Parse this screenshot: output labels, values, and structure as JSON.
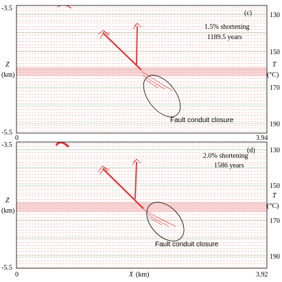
{
  "chart_data": [
    {
      "type": "vector-field",
      "panel_label": "(c)",
      "annotation_line1": "1.5% shortening",
      "annotation_line2": "1189.5 years",
      "callout": "Fault conduit closure",
      "xlim": [
        0,
        3.94
      ],
      "x_tick_labels": [
        "0",
        "3.94"
      ],
      "zlim": [
        -5.5,
        -3.5
      ],
      "z_tick_labels": [
        "-3.5",
        "-5.5"
      ],
      "t_ticks": [
        130,
        150,
        170,
        190
      ],
      "ylabel_z": "Z",
      "ylabel_z_unit": "(km)",
      "ylabel_t": "T",
      "ylabel_t_unit": "(°C)"
    },
    {
      "type": "vector-field",
      "panel_label": "(d)",
      "annotation_line1": "2.0% shortening",
      "annotation_line2": "1586 years",
      "callout": "Fault conduit closure",
      "xlim": [
        0,
        3.92
      ],
      "x_tick_labels": [
        "0",
        "3.92"
      ],
      "zlim": [
        -5.5,
        -3.5
      ],
      "z_tick_labels": [
        "-3.5",
        "-5.5"
      ],
      "t_ticks": [
        130,
        150,
        170,
        190
      ],
      "ylabel_z": "Z",
      "ylabel_z_unit": "(km)",
      "ylabel_t": "T",
      "ylabel_t_unit": "(°C)",
      "xlabel": "X",
      "xlabel_unit": "(km)"
    }
  ],
  "colors": {
    "vector": "#e03030",
    "isotherm": "#8ac08a",
    "frame": "#000000"
  }
}
